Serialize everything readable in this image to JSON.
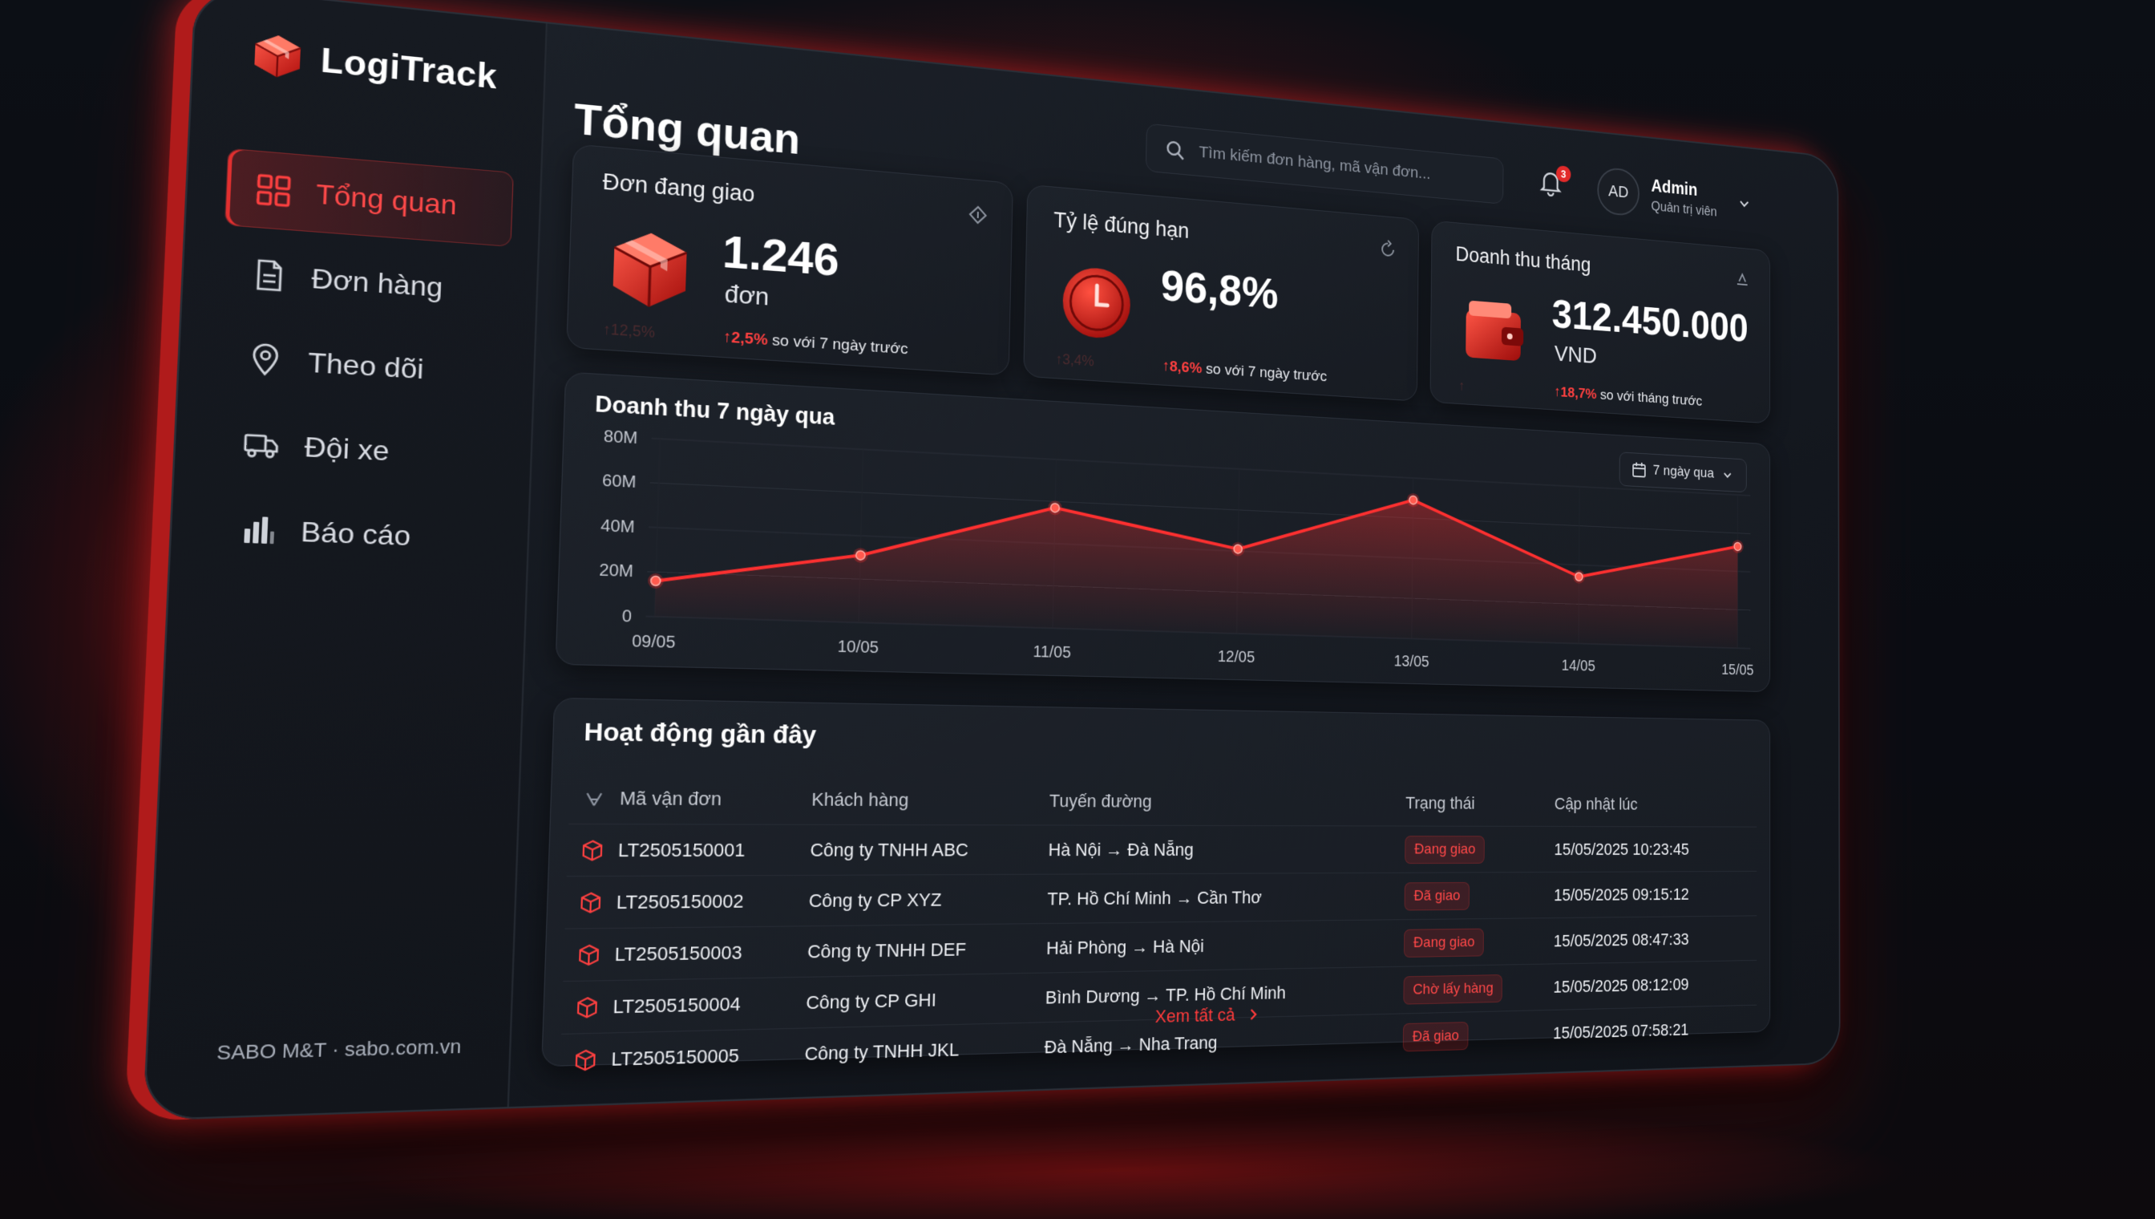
{
  "app": {
    "name": "LogiTrack"
  },
  "sidebar": {
    "items": [
      {
        "label": "Tổng quan",
        "icon": "grid-icon",
        "active": true
      },
      {
        "label": "Đơn hàng",
        "icon": "document-icon",
        "active": false
      },
      {
        "label": "Theo dõi",
        "icon": "location-pin-icon",
        "active": false
      },
      {
        "label": "Đội xe",
        "icon": "truck-icon",
        "active": false
      },
      {
        "label": "Báo cáo",
        "icon": "bar-chart-icon",
        "active": false
      }
    ],
    "footer": "SABO M&T · sabo.com.vn"
  },
  "header": {
    "title": "Tổng quan",
    "search_placeholder": "Tìm kiếm đơn hàng, mã vận đơn...",
    "notification_count": "3",
    "user": {
      "initials": "AD",
      "name": "Admin",
      "role": "Quản trị viên"
    }
  },
  "kpis": [
    {
      "title": "Đơn đang giao",
      "value": "1.246",
      "unit": "đơn",
      "ghost": "↑12,5%",
      "delta": "↑2,5%",
      "delta_text": "so với 7 ngày trước",
      "icon": "package-icon"
    },
    {
      "title": "Tỷ lệ đúng hạn",
      "value": "96,8%",
      "unit": "",
      "ghost": "↑3,4%",
      "delta": "↑8,6%",
      "delta_text": "so với 7 ngày trước",
      "icon": "clock-icon"
    },
    {
      "title": "Doanh thu tháng",
      "value": "312.450.000",
      "unit": "VND",
      "ghost": "↑",
      "delta": "↑18,7%",
      "delta_text": "so với tháng trước",
      "icon": "wallet-icon"
    }
  ],
  "revenue_chart": {
    "title": "Doanh thu 7 ngày qua",
    "range_label": "7 ngày qua"
  },
  "chart_data": {
    "type": "area",
    "title": "Doanh thu 7 ngày qua",
    "categories": [
      "09/05",
      "10/05",
      "11/05",
      "12/05",
      "13/05",
      "14/05",
      "15/05"
    ],
    "series": [
      {
        "values": [
          16,
          31,
          57,
          41,
          69,
          34,
          53
        ]
      }
    ],
    "ylim": [
      0,
      80
    ],
    "yticks": [
      "0",
      "20M",
      "40M",
      "60M",
      "80M"
    ],
    "grid": true,
    "color": "#ff3030"
  },
  "activity": {
    "title": "Hoạt động gần đây",
    "columns": [
      "Mã vận đơn",
      "Khách hàng",
      "Tuyến đường",
      "Trạng thái",
      "Cập nhật lúc"
    ],
    "rows": [
      {
        "code": "LT2505150001",
        "customer": "Công ty TNHH ABC",
        "route": "Hà Nội → Đà Nẵng",
        "status": "Đang giao",
        "updated": "15/05/2025 10:23:45"
      },
      {
        "code": "LT2505150002",
        "customer": "Công ty CP XYZ",
        "route": "TP. Hồ Chí Minh → Cần Thơ",
        "status": "Đã giao",
        "updated": "15/05/2025 09:15:12"
      },
      {
        "code": "LT2505150003",
        "customer": "Công ty TNHH DEF",
        "route": "Hải Phòng → Hà Nội",
        "status": "Đang giao",
        "updated": "15/05/2025 08:47:33"
      },
      {
        "code": "LT2505150004",
        "customer": "Công ty CP GHI",
        "route": "Bình Dương → TP. Hồ Chí Minh",
        "status": "Chờ lấy hàng",
        "updated": "15/05/2025 08:12:09"
      },
      {
        "code": "LT2505150005",
        "customer": "Công ty TNHH JKL",
        "route": "Đà Nẵng → Nha Trang",
        "status": "Đã giao",
        "updated": "15/05/2025 07:58:21"
      }
    ],
    "see_all": "Xem tất cả"
  },
  "colors": {
    "accent": "#ff3030",
    "background": "#12151b",
    "card": "#1b2028"
  }
}
